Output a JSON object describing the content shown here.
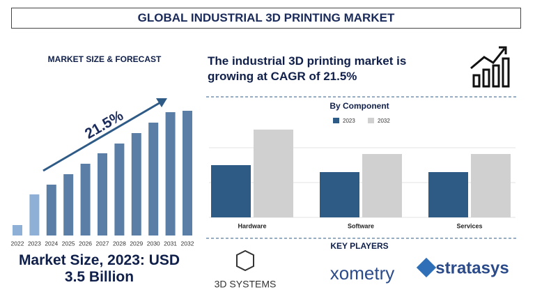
{
  "title": "GLOBAL INDUSTRIAL 3D PRINTING MARKET",
  "headline": "The industrial 3D printing market is growing at CAGR of 21.5%",
  "market_size": "Market Size, 2023: USD 3.5 Billion",
  "key_players": {
    "title": "KEY PLAYERS",
    "names": [
      "3D SYSTEMS",
      "xometry",
      "stratasys"
    ]
  },
  "chart_data": [
    {
      "type": "bar",
      "title": "MARKET SIZE & FORECAST",
      "annotation": "21.5%",
      "categories": [
        "2022",
        "2023",
        "2024",
        "2025",
        "2026",
        "2027",
        "2028",
        "2029",
        "2030",
        "2031",
        "2032"
      ],
      "values": [
        15,
        59,
        73,
        88,
        103,
        118,
        132,
        147,
        162,
        177,
        179
      ],
      "colors": [
        "#8fb0d6",
        "#8fb0d6",
        "#5b7ea6",
        "#5b7ea6",
        "#5b7ea6",
        "#5b7ea6",
        "#5b7ea6",
        "#5b7ea6",
        "#5b7ea6",
        "#5b7ea6",
        "#5b7ea6"
      ],
      "ylim": [
        0,
        200
      ]
    },
    {
      "type": "grouped-bar",
      "title": "By Component",
      "categories": [
        "Hardware",
        "Software",
        "Services"
      ],
      "series": [
        {
          "name": "2023",
          "color": "#2e5a86",
          "values": [
            75,
            65,
            65
          ]
        },
        {
          "name": "2032",
          "color": "#d0d0d0",
          "values": [
            126,
            91,
            91
          ]
        }
      ],
      "ylim": [
        0,
        130
      ],
      "grid": true
    }
  ]
}
